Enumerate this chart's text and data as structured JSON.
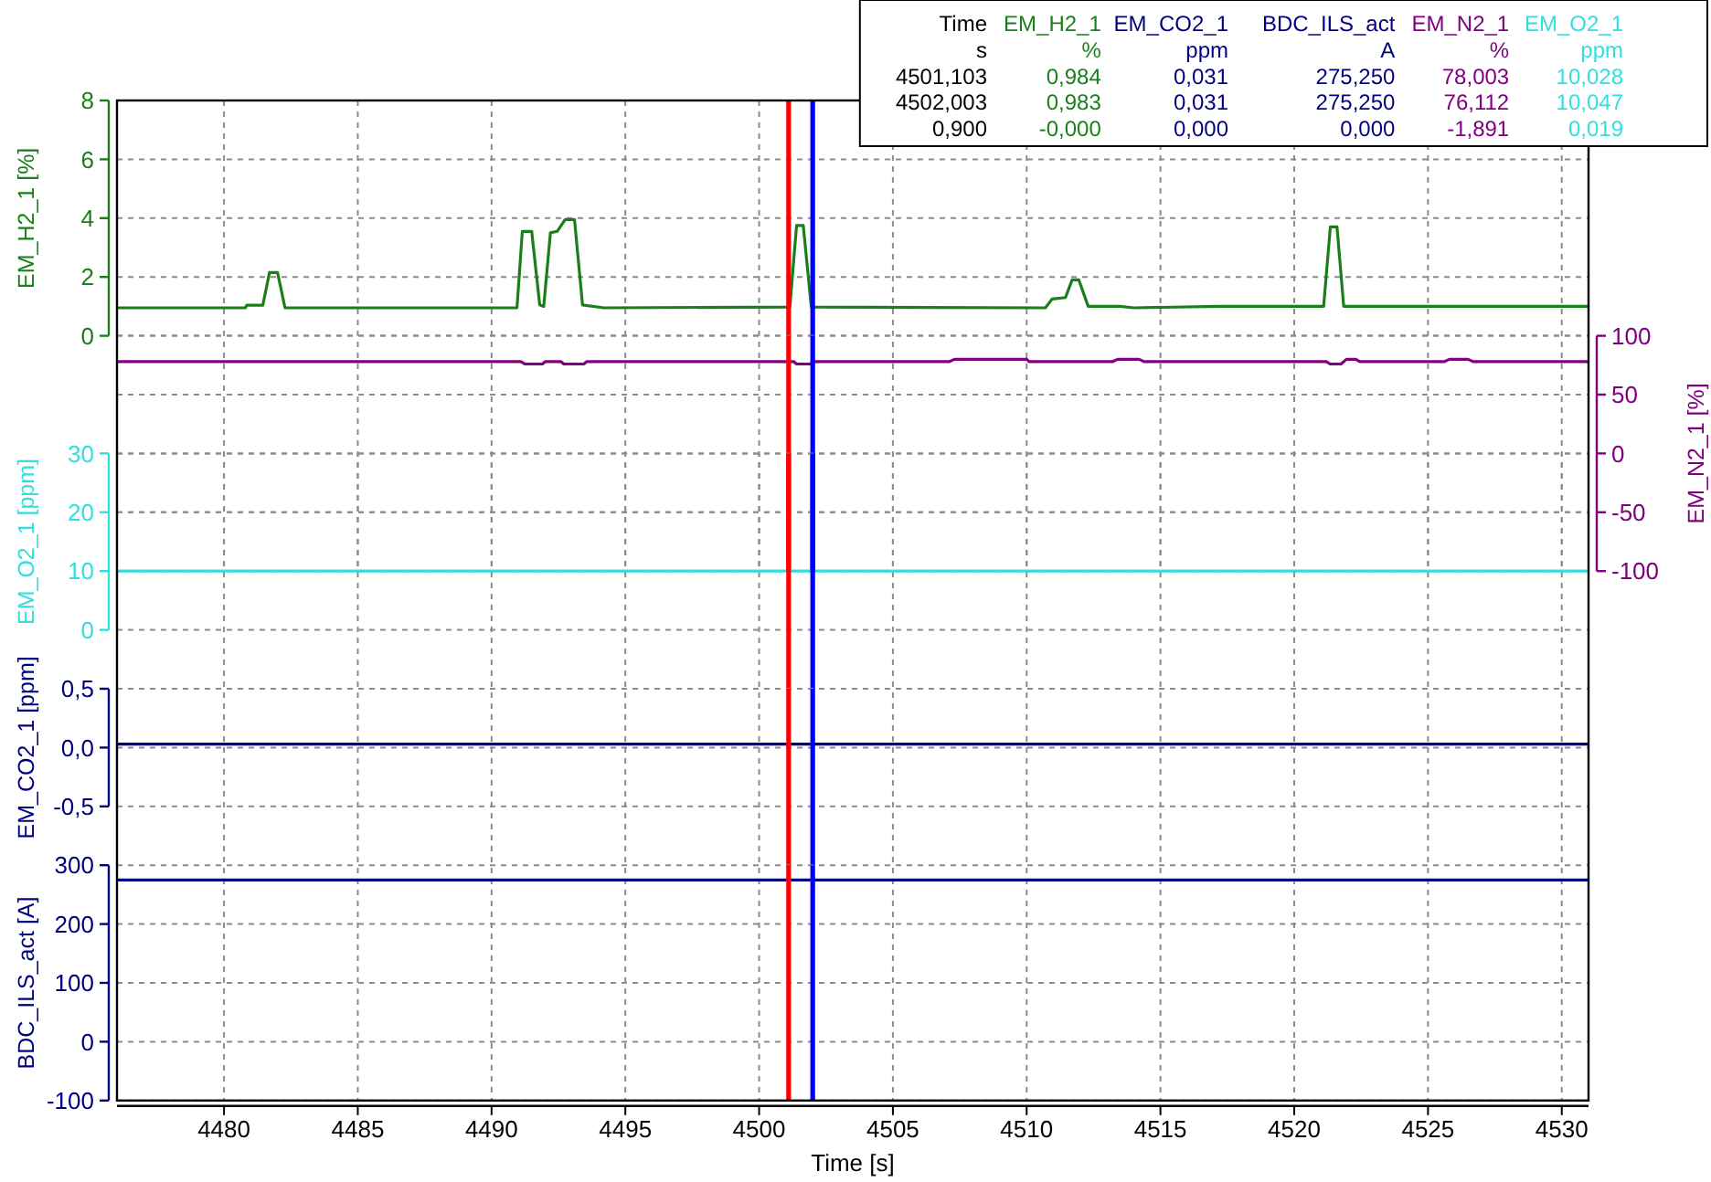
{
  "chart_data": [
    {
      "type": "other",
      "annotations": [
        "Time EM_H2_1 EM_CO2_1 BDC_ILS_act EM_N2_1 EM_O2_1",
        "s % ppm A % ppm",
        "4501,103 0,984 0,031 275,250 78,003 10,028",
        "4502,003 0,983 0,031 275,250 76,112 10,047",
        "0,900 -0,000 0,000 0,000 -1,891 0,019"
      ],
      "colors": [
        "#000000",
        "#1a7f1a",
        "#000080",
        "#000080",
        "#800080",
        "#33dede"
      ]
    },
    {
      "type": "line",
      "ylabel": "EM_H2_1 [%]",
      "xlim": [
        4476,
        4531
      ],
      "xticks": [
        4480,
        4485,
        4490,
        4495,
        4500,
        4505,
        4510,
        4515,
        4520,
        4525,
        4530
      ],
      "ylim": [
        0,
        8
      ],
      "yticks": [
        0,
        2,
        4,
        6,
        8
      ],
      "grid": true,
      "tick_labels": "y",
      "ref_lines": [
        {
          "axis": "x",
          "value": 4501.103,
          "color": "#ff0000"
        },
        {
          "axis": "x",
          "value": 4502.003,
          "color": "#0000ff"
        }
      ],
      "series": [
        {
          "color": "#1a7f1a",
          "x": [
            4476,
            4480.8,
            4480.85,
            4481.45,
            4481.7,
            4482.0,
            4482.28,
            4490.95,
            4491.15,
            4491.5,
            4491.8,
            4491.95,
            4492.2,
            4492.45,
            4492.75,
            4493.1,
            4493.4,
            4494.2,
            4501.15,
            4501.4,
            4501.65,
            4501.95,
            4510.7,
            4510.95,
            4511.45,
            4511.7,
            4511.95,
            4512.3,
            4513.5,
            4514,
            4517.2,
            4521.1,
            4521.35,
            4521.6,
            4521.85,
            4531
          ],
          "values": [
            0.95,
            0.95,
            1.04,
            1.04,
            2.15,
            2.15,
            0.95,
            0.95,
            3.55,
            3.55,
            1.05,
            1.0,
            3.5,
            3.55,
            3.95,
            3.95,
            1.05,
            0.95,
            0.98,
            3.75,
            3.75,
            0.98,
            0.95,
            1.25,
            1.3,
            1.9,
            1.9,
            1.0,
            1.0,
            0.95,
            1.0,
            1.0,
            3.7,
            3.7,
            1.0,
            1.0
          ]
        }
      ]
    },
    {
      "type": "line",
      "ylabel": "EM_O2_1 [ppm]",
      "xlim": [
        4476,
        4531
      ],
      "xticks": [
        4480,
        4485,
        4490,
        4495,
        4500,
        4505,
        4510,
        4515,
        4520,
        4525,
        4530
      ],
      "ylim": [
        0,
        30
      ],
      "yticks": [
        0,
        10,
        20,
        30
      ],
      "grid": true,
      "tick_labels": "y",
      "ref_lines": [
        {
          "axis": "x",
          "value": 4501.103,
          "color": "#ff0000"
        },
        {
          "axis": "x",
          "value": 4502.003,
          "color": "#0000ff"
        }
      ],
      "series": [
        {
          "color": "#33dede",
          "x": [
            4476,
            4482.5,
            4487.5,
            4492.5,
            4497.5,
            4507.5,
            4512.5,
            4517.5,
            4522.5,
            4527.5,
            4531
          ],
          "values": [
            10,
            10,
            10,
            10,
            10,
            10,
            10,
            10,
            10,
            10,
            10
          ]
        }
      ]
    },
    {
      "type": "line",
      "ylabel": "EM_N2_1 [%]",
      "xlim": [
        4476,
        4531
      ],
      "xticks": [
        4480,
        4485,
        4490,
        4495,
        4500,
        4505,
        4510,
        4515,
        4520,
        4525,
        4530
      ],
      "ylim": [
        -100,
        100
      ],
      "yticks": [
        -100,
        -50,
        0,
        50,
        100
      ],
      "grid": true,
      "tick_labels": "y",
      "ref_lines": [
        {
          "axis": "x",
          "value": 4501.103,
          "color": "#ff0000"
        },
        {
          "axis": "x",
          "value": 4502.003,
          "color": "#0000ff"
        }
      ],
      "series": [
        {
          "color": "#800080",
          "x": [
            4476,
            4491.1,
            4491.25,
            4491.9,
            4492.0,
            4492.6,
            4492.7,
            4493.45,
            4493.55,
            4501.3,
            4501.4,
            4501.9,
            4502.05,
            4507.1,
            4507.3,
            4510.0,
            4510.1,
            4513.2,
            4513.4,
            4514.2,
            4514.4,
            4521.2,
            4521.35,
            4521.75,
            4521.95,
            4522.3,
            4522.45,
            4525.6,
            4525.8,
            4526.5,
            4526.7,
            4531
          ],
          "values": [
            78,
            78,
            76,
            76,
            78,
            78,
            76,
            76,
            78,
            78,
            76,
            76,
            78,
            78,
            80,
            80,
            78,
            78,
            80,
            80,
            78,
            78,
            76,
            76,
            80,
            80,
            78,
            78,
            80,
            80,
            78,
            78
          ]
        }
      ]
    },
    {
      "type": "line",
      "ylabel": "EM_CO2_1 [ppm]",
      "xlim": [
        4476,
        4531
      ],
      "xticks": [
        4480,
        4485,
        4490,
        4495,
        4500,
        4505,
        4510,
        4515,
        4520,
        4525,
        4530
      ],
      "ylim": [
        -0.5,
        0.5
      ],
      "yticks": [
        {
          "value": -0.5,
          "label": "-0,5"
        },
        {
          "value": 0,
          "label": "0,0"
        },
        {
          "value": 0.5,
          "label": "0,5"
        }
      ],
      "grid": true,
      "tick_labels": "y",
      "ref_lines": [
        {
          "axis": "x",
          "value": 4501.103,
          "color": "#ff0000"
        },
        {
          "axis": "x",
          "value": 4502.003,
          "color": "#0000ff"
        }
      ],
      "series": [
        {
          "color": "#000080",
          "x": [
            4476,
            4487.5,
            4497.5,
            4512.5,
            4522.5,
            4531
          ],
          "values": [
            0.03,
            0.03,
            0.03,
            0.03,
            0.03,
            0.03
          ]
        }
      ]
    },
    {
      "type": "line",
      "xlabel": "Time [s]",
      "ylabel": "BDC_ILS_act [A]",
      "xlim": [
        4476,
        4531
      ],
      "xticks": [
        4480,
        4485,
        4490,
        4495,
        4500,
        4505,
        4510,
        4515,
        4520,
        4525,
        4530
      ],
      "ylim": [
        -100,
        300
      ],
      "yticks": [
        -100,
        0,
        100,
        200,
        300
      ],
      "grid": true,
      "ref_lines": [
        {
          "axis": "x",
          "value": 4501.103,
          "color": "#ff0000"
        },
        {
          "axis": "x",
          "value": 4502.003,
          "color": "#0000ff"
        }
      ],
      "series": [
        {
          "color": "#000080",
          "x": [
            4476,
            4487.5,
            4497.5,
            4512.5,
            4522.5,
            4531
          ],
          "values": [
            275,
            275,
            275,
            275,
            275,
            275
          ]
        }
      ]
    }
  ]
}
